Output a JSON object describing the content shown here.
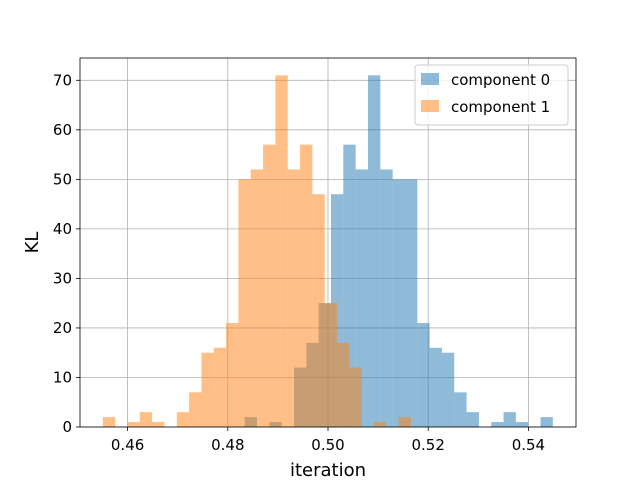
{
  "chart_data": {
    "type": "histogram",
    "title": "",
    "xlabel": "iteration",
    "ylabel": "KL",
    "xlim": [
      0.4505,
      0.5495
    ],
    "ylim": [
      0,
      74.5
    ],
    "grid": true,
    "legend_position": "top-right",
    "bin_width": 0.00246,
    "bar_opacity": 0.5,
    "x_ticks": [
      0.46,
      0.48,
      0.5,
      0.52,
      0.54
    ],
    "x_tick_labels": [
      "0.46",
      "0.48",
      "0.50",
      "0.52",
      "0.54"
    ],
    "y_ticks": [
      0,
      10,
      20,
      30,
      40,
      50,
      60,
      70
    ],
    "y_tick_labels": [
      "0",
      "10",
      "20",
      "30",
      "40",
      "50",
      "60",
      "70"
    ],
    "series": [
      {
        "name": "component 0",
        "color": "#1f77b4",
        "bins": [
          {
            "start": 0.48337,
            "count": 2
          },
          {
            "start": 0.4883,
            "count": 1
          },
          {
            "start": 0.49322,
            "count": 12
          },
          {
            "start": 0.49568,
            "count": 17
          },
          {
            "start": 0.49814,
            "count": 25
          },
          {
            "start": 0.5006,
            "count": 47
          },
          {
            "start": 0.50306,
            "count": 57
          },
          {
            "start": 0.50552,
            "count": 52
          },
          {
            "start": 0.50798,
            "count": 71
          },
          {
            "start": 0.51044,
            "count": 52
          },
          {
            "start": 0.5129,
            "count": 50
          },
          {
            "start": 0.51536,
            "count": 50
          },
          {
            "start": 0.51782,
            "count": 21
          },
          {
            "start": 0.52028,
            "count": 16
          },
          {
            "start": 0.52274,
            "count": 15
          },
          {
            "start": 0.5252,
            "count": 7
          },
          {
            "start": 0.52766,
            "count": 3
          },
          {
            "start": 0.53258,
            "count": 1
          },
          {
            "start": 0.53504,
            "count": 3
          },
          {
            "start": 0.5375,
            "count": 1
          },
          {
            "start": 0.54242,
            "count": 2
          }
        ]
      },
      {
        "name": "component 1",
        "color": "#ff7f0e",
        "bins": [
          {
            "start": 0.45506,
            "count": 2
          },
          {
            "start": 0.45998,
            "count": 1
          },
          {
            "start": 0.46244,
            "count": 3
          },
          {
            "start": 0.4649,
            "count": 1
          },
          {
            "start": 0.46982,
            "count": 3
          },
          {
            "start": 0.47228,
            "count": 7
          },
          {
            "start": 0.47474,
            "count": 15
          },
          {
            "start": 0.4772,
            "count": 16
          },
          {
            "start": 0.47966,
            "count": 21
          },
          {
            "start": 0.48212,
            "count": 50
          },
          {
            "start": 0.48458,
            "count": 52
          },
          {
            "start": 0.48704,
            "count": 57
          },
          {
            "start": 0.4895,
            "count": 71
          },
          {
            "start": 0.49196,
            "count": 52
          },
          {
            "start": 0.49442,
            "count": 57
          },
          {
            "start": 0.49688,
            "count": 47
          },
          {
            "start": 0.49934,
            "count": 25
          },
          {
            "start": 0.5018,
            "count": 17
          },
          {
            "start": 0.50426,
            "count": 12
          },
          {
            "start": 0.50918,
            "count": 1
          },
          {
            "start": 0.5141,
            "count": 2
          }
        ]
      }
    ]
  }
}
